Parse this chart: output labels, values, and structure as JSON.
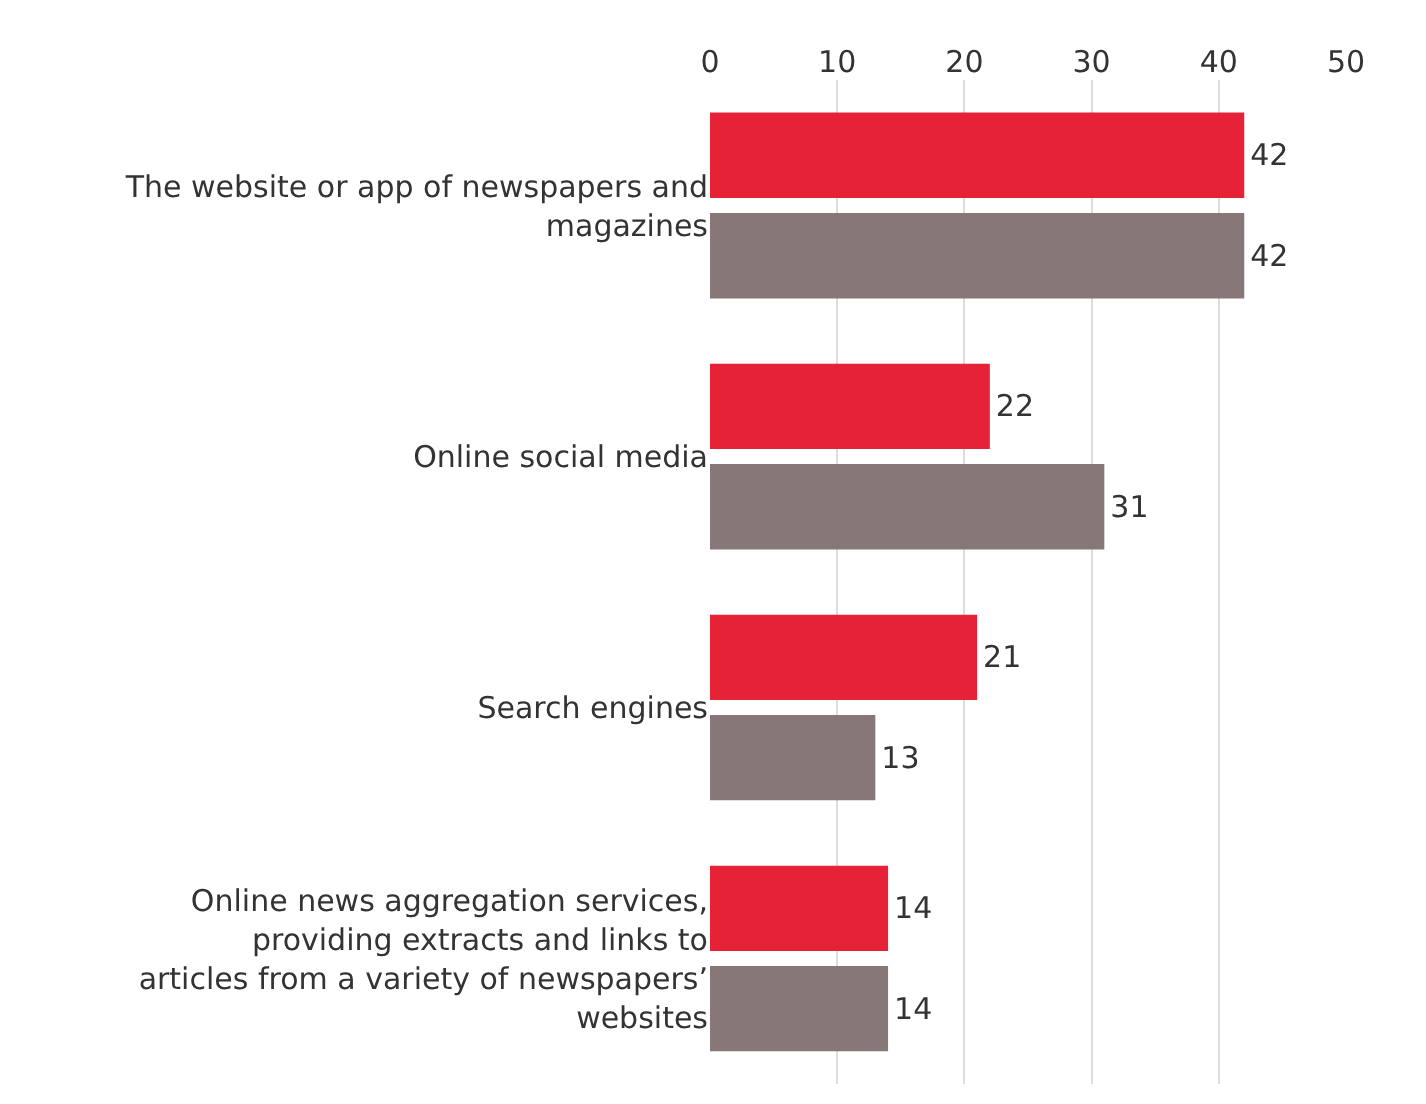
{
  "chart_data": {
    "type": "bar",
    "orientation": "horizontal",
    "categories": [
      "The website or app of newspapers and magazines",
      "Online social media",
      "Search engines",
      "Online news aggregation services, providing extracts and links to articles from a variety of newspapers’ websites"
    ],
    "series": [
      {
        "color": "#e62237",
        "values": [
          42,
          22,
          21,
          14
        ]
      },
      {
        "color": "#877779",
        "values": [
          42,
          31,
          13,
          14
        ]
      }
    ],
    "xlim": [
      0,
      50
    ],
    "xticks": [
      0,
      10,
      20,
      30,
      40,
      50
    ],
    "grid": "x",
    "data_labels": true
  }
}
